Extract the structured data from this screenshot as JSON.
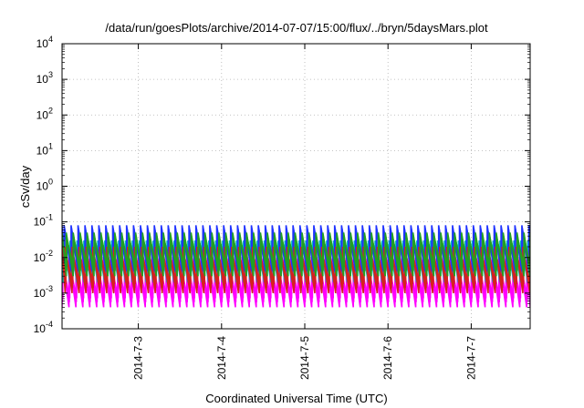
{
  "chart_data": {
    "type": "line",
    "title": "/data/run/goesPlots/archive/2014-07-07/15:00/flux/../bryn/5daysMars.plot",
    "xlabel": "Coordinated Universal Time (UTC)",
    "ylabel": "cSv/day",
    "x_range": [
      "2014-07-02T02:00",
      "2014-07-07T17:00"
    ],
    "x_ticks": [
      {
        "value": "2014-07-03T00:00",
        "label": "2014-7-3"
      },
      {
        "value": "2014-07-04T00:00",
        "label": "2014-7-4"
      },
      {
        "value": "2014-07-05T00:00",
        "label": "2014-7-5"
      },
      {
        "value": "2014-07-06T00:00",
        "label": "2014-7-6"
      },
      {
        "value": "2014-07-07T00:00",
        "label": "2014-7-7"
      }
    ],
    "y_scale": "log",
    "ylim": [
      0.0001,
      10000
    ],
    "y_ticks": [
      {
        "base": "10",
        "exp": "-4"
      },
      {
        "base": "10",
        "exp": "-3"
      },
      {
        "base": "10",
        "exp": "-2"
      },
      {
        "base": "10",
        "exp": "-1"
      },
      {
        "base": "10",
        "exp": "0"
      },
      {
        "base": "10",
        "exp": "1"
      },
      {
        "base": "10",
        "exp": "2"
      },
      {
        "base": "10",
        "exp": "3"
      },
      {
        "base": "10",
        "exp": "4"
      }
    ],
    "grid": true,
    "cycle_period_hours": 2,
    "series": [
      {
        "color": "#ff00ff",
        "peak": 0.01,
        "trough": 0.0004
      },
      {
        "color": "#00bfbf",
        "peak": 0.03,
        "trough": 0.002
      },
      {
        "color": "#1e32ff",
        "peak": 0.08,
        "trough": 0.004
      },
      {
        "color": "#d62020",
        "peak": 0.02,
        "trough": 0.001
      },
      {
        "color": "#22a022",
        "peak": 0.05,
        "trough": 0.003
      }
    ]
  }
}
